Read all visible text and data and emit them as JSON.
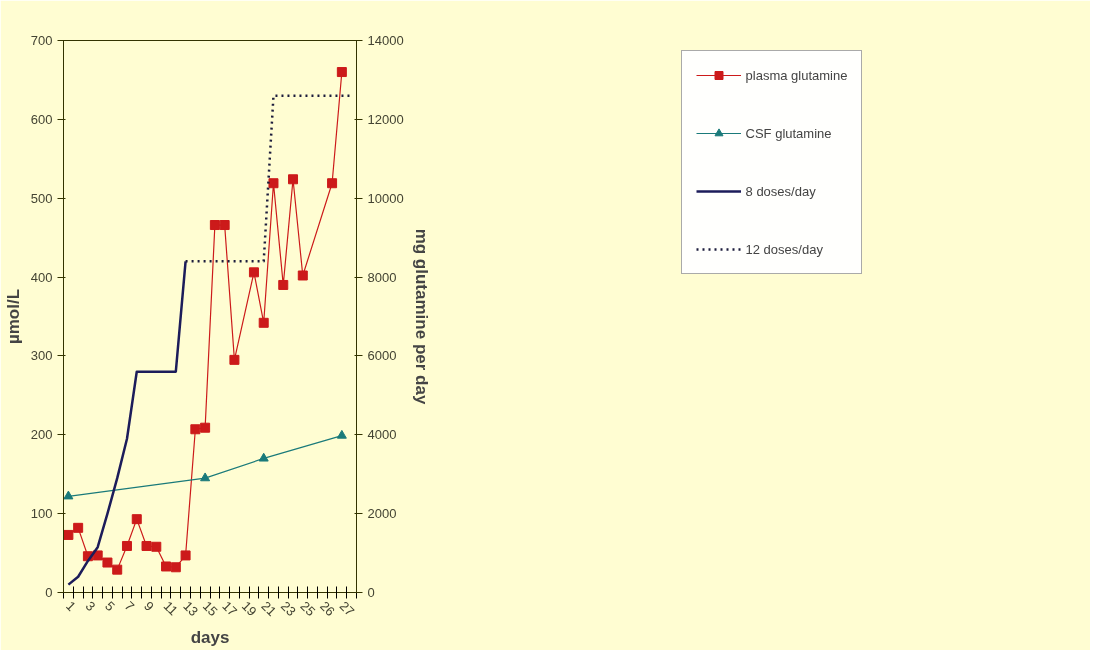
{
  "chart_data": {
    "type": "line",
    "xlabel": "days",
    "ylabel": "µmol/L",
    "y2label": "mg glutamine per day",
    "categories": [
      "1",
      null,
      "3",
      null,
      "5",
      null,
      "7",
      null,
      "9",
      null,
      "11",
      null,
      "13",
      null,
      "15",
      null,
      "17",
      null,
      "19",
      null,
      "21",
      null,
      "23",
      null,
      "25",
      null,
      "26",
      null,
      "27",
      null
    ],
    "ylim": [
      0,
      700
    ],
    "yticks": [
      0,
      100,
      200,
      300,
      400,
      500,
      600,
      700
    ],
    "y2lim": [
      0,
      14000
    ],
    "y2ticks": [
      0,
      2000,
      4000,
      6000,
      8000,
      10000,
      12000,
      14000
    ],
    "grid": false,
    "legend": "right",
    "series": [
      {
        "name": "plasma glutamine",
        "color": "#cc1a1a",
        "marker": "square",
        "values": [
          73,
          82,
          46,
          47,
          38,
          29,
          59,
          93,
          59,
          58,
          33,
          32,
          47,
          207,
          209,
          466,
          466,
          295,
          null,
          406,
          342,
          519,
          390,
          524,
          402,
          null,
          null,
          519,
          660,
          null
        ]
      },
      {
        "name": "CSF glutamine",
        "color": "#1a7a7a",
        "marker": "triangle",
        "values": [
          122,
          null,
          null,
          null,
          null,
          null,
          null,
          null,
          null,
          null,
          null,
          null,
          null,
          null,
          145,
          null,
          null,
          null,
          null,
          null,
          170,
          null,
          null,
          null,
          null,
          null,
          null,
          null,
          199,
          null
        ]
      },
      {
        "name": "8 doses/day",
        "color": "#1c1c5a",
        "axis": "y2",
        "line_style": "solid",
        "values": [
          200,
          400,
          800,
          1150,
          2000,
          2900,
          3900,
          5600,
          5600,
          5600,
          5600,
          5600,
          8400,
          null,
          null,
          null,
          null,
          null,
          null,
          null,
          null,
          null,
          null,
          null,
          null,
          null,
          null,
          null,
          null,
          null
        ]
      },
      {
        "name": "12 doses/day",
        "color": "#1c1c3c",
        "axis": "y2",
        "line_style": "dotted",
        "values": [
          null,
          null,
          null,
          null,
          null,
          null,
          null,
          null,
          null,
          null,
          null,
          null,
          8400,
          8400,
          8400,
          8400,
          8400,
          8400,
          8400,
          8400,
          8400,
          12600,
          12600,
          12600,
          12600,
          12600,
          12600,
          12600,
          12600,
          12600
        ]
      }
    ]
  }
}
